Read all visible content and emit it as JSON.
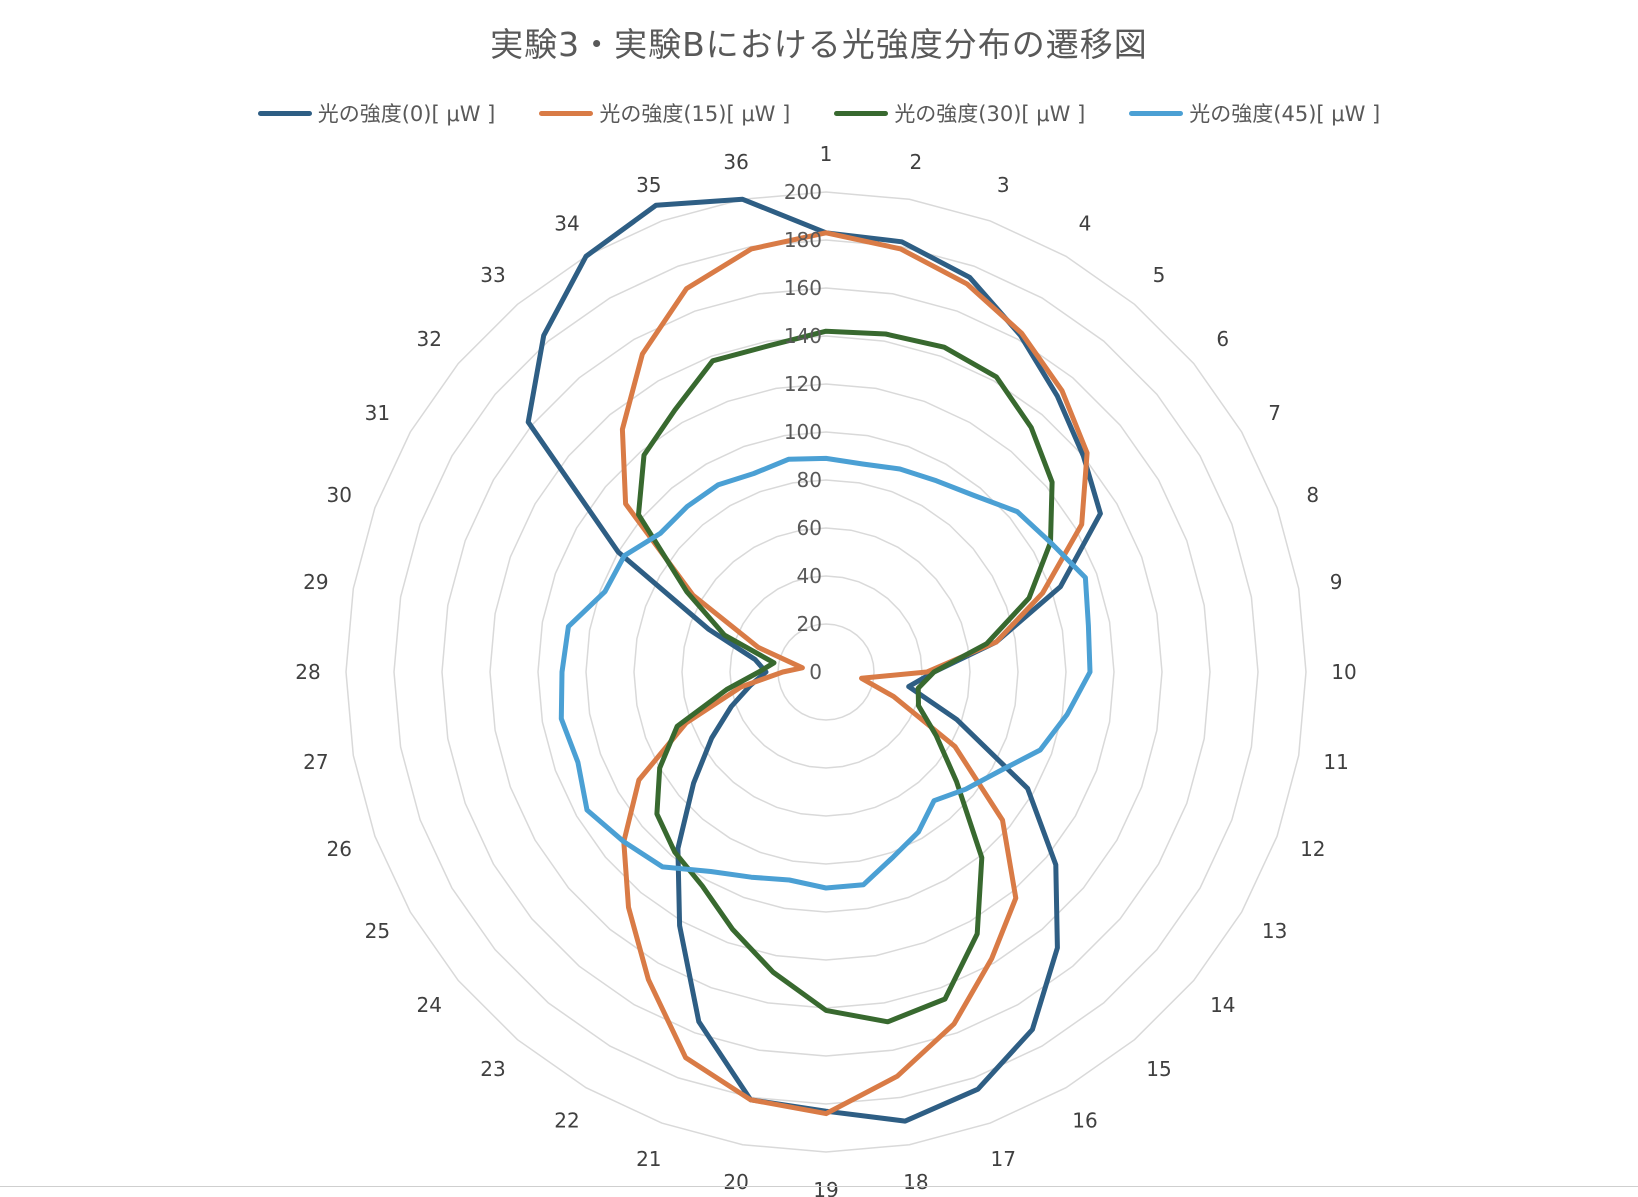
{
  "chart_data": {
    "type": "radar",
    "title": "実験3・実験Bにおける光強度分布の遷移図",
    "categories": [
      "1",
      "2",
      "3",
      "4",
      "5",
      "6",
      "7",
      "8",
      "9",
      "10",
      "11",
      "12",
      "13",
      "14",
      "15",
      "16",
      "17",
      "18",
      "19",
      "20",
      "21",
      "22",
      "23",
      "24",
      "25",
      "26",
      "27",
      "28",
      "29",
      "30",
      "31",
      "32",
      "33",
      "34",
      "35",
      "36"
    ],
    "radial_ticks": [
      "0",
      "20",
      "40",
      "60",
      "80",
      "100",
      "120",
      "140",
      "160",
      "180",
      "200"
    ],
    "rlim": [
      0,
      200
    ],
    "grid": true,
    "legend_position": "top",
    "series": [
      {
        "name": "光の強度(0)[ μW ]",
        "color": "#2E5E84",
        "values": [
          183,
          182,
          175,
          162,
          150,
          140,
          132,
          104,
          72,
          45,
          35,
          58,
          97,
          125,
          150,
          172,
          185,
          190,
          183,
          181,
          155,
          122,
          96,
          72,
          55,
          42,
          32,
          25,
          30,
          52,
          100,
          162,
          183,
          200,
          207,
          200
        ]
      },
      {
        "name": "光の強度(15)[ μW ]",
        "color": "#D97B46",
        "values": [
          183,
          179,
          172,
          163,
          153,
          142,
          123,
          96,
          72,
          42,
          15,
          30,
          62,
          96,
          123,
          138,
          156,
          171,
          184,
          181,
          171,
          148,
          128,
          110,
          90,
          62,
          36,
          18,
          10,
          30,
          64,
          109,
          132,
          153,
          170,
          179
        ]
      },
      {
        "name": "光の強度(30)[ μW ]",
        "color": "#38692F",
        "values": [
          142,
          143,
          144,
          142,
          133,
          123,
          108,
          90,
          68,
          45,
          39,
          41,
          53,
          71,
          101,
          126,
          145,
          148,
          141,
          127,
          114,
          103,
          98,
          92,
          80,
          66,
          42,
          28,
          22,
          45,
          67,
          102,
          118,
          126,
          138,
          138
        ]
      },
      {
        "name": "光の強度(45)[ μW ]",
        "color": "#4BA0D4",
        "values": [
          89,
          88,
          90,
          92,
          96,
          104,
          108,
          115,
          111,
          110,
          102,
          95,
          83,
          76,
          70,
          77,
          82,
          90,
          90,
          88,
          91,
          96,
          106,
          110,
          115,
          110,
          112,
          110,
          109,
          98,
          97,
          90,
          90,
          90,
          88,
          90
        ]
      }
    ]
  }
}
